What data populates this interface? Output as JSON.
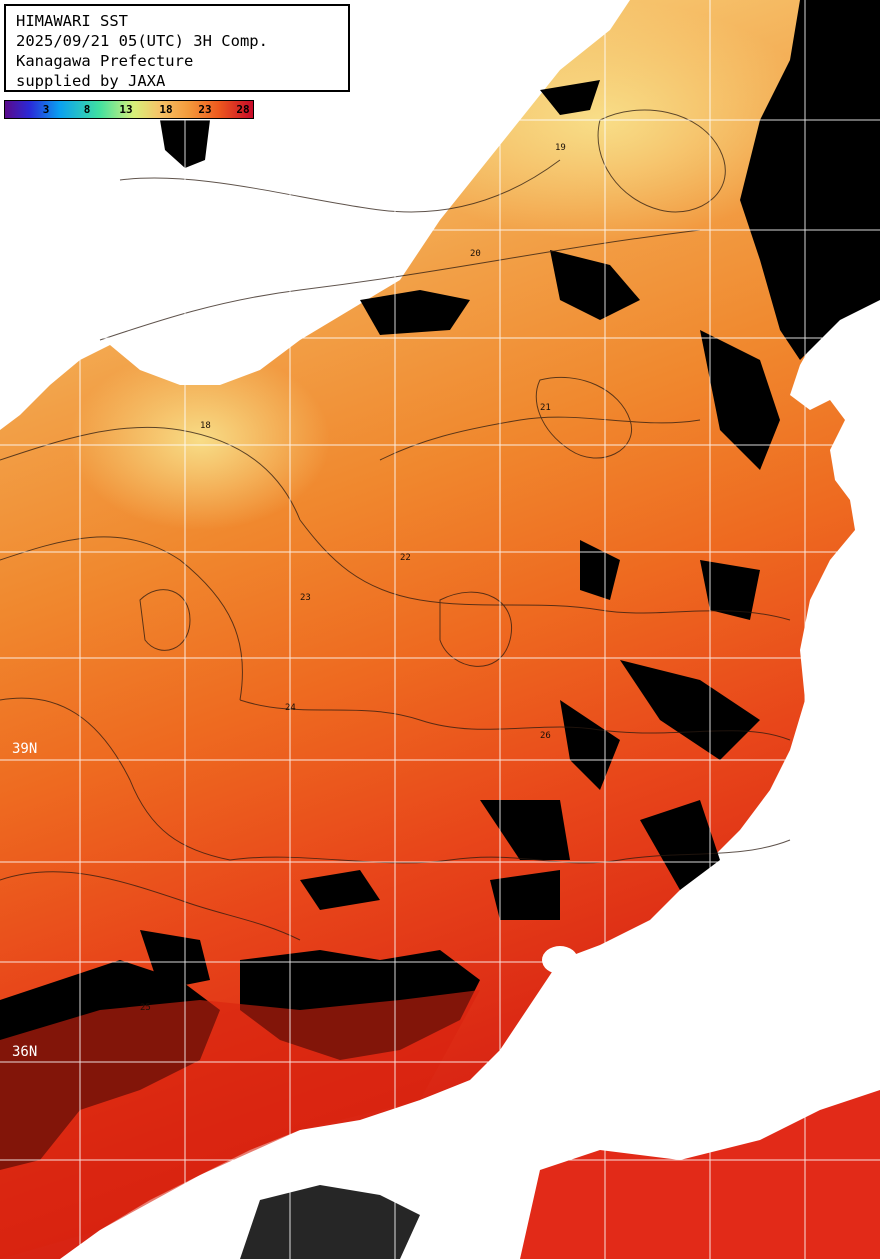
{
  "header": {
    "line1": "HIMAWARI SST",
    "line2": "2025/09/21 05(UTC) 3H Comp.",
    "line3": "Kanagawa Prefecture",
    "line4": "supplied by JAXA"
  },
  "scale": {
    "ticks": [
      "3",
      "8",
      "13",
      "18",
      "23",
      "28"
    ]
  },
  "latitude_labels": [
    "39N",
    "36N"
  ],
  "contour_labels": [
    "18",
    "19",
    "20",
    "21",
    "22",
    "23",
    "24",
    "25",
    "26"
  ],
  "colors": {
    "land": "#ffffff",
    "cloud": "#000000",
    "sst_cold": "#f6d77c",
    "sst_mid": "#f39a3c",
    "sst_warm": "#ee5a1e",
    "sst_hot": "#d81e14",
    "grid": "#ffffff"
  }
}
